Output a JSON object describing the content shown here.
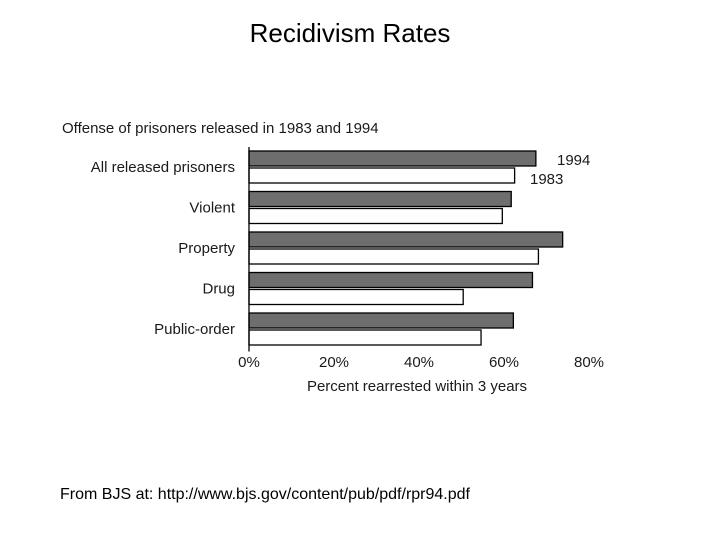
{
  "slide": {
    "title": "Recidivism Rates",
    "source": "From BJS at:  http://www.bjs.gov/content/pub/pdf/rpr94.pdf"
  },
  "colors": {
    "bar_1994": "#6e6e6e",
    "bar_1983": "#ffffff",
    "stroke": "#000000"
  },
  "chart_data": {
    "type": "bar",
    "orientation": "horizontal",
    "title": "Offense of prisoners released in 1983 and 1994",
    "categories": [
      "All released prisoners",
      "Violent",
      "Property",
      "Drug",
      "Public-order"
    ],
    "series": [
      {
        "name": "1994",
        "values": [
          67.5,
          61.7,
          73.8,
          66.7,
          62.2
        ]
      },
      {
        "name": "1983",
        "values": [
          62.5,
          59.6,
          68.1,
          50.4,
          54.6
        ]
      }
    ],
    "xlabel": "Percent rearrested within 3 years",
    "xlim": [
      0,
      80
    ],
    "xticks": [
      "0%",
      "20%",
      "40%",
      "60%",
      "80%"
    ],
    "legend_placement": "inline-right-of-first-bars",
    "grid": false
  }
}
